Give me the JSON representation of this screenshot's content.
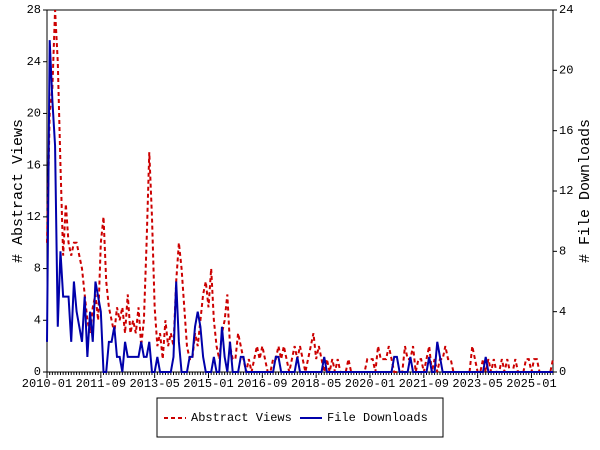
{
  "chart_data": {
    "type": "line",
    "y_label": "# Abstract Views",
    "y2_label": "# File Downloads",
    "categories": [
      "2010-01",
      null,
      null,
      null,
      null,
      null,
      null,
      null,
      null,
      null,
      null,
      null,
      null,
      null,
      null,
      null,
      null,
      null,
      null,
      null,
      "2011-09",
      null,
      null,
      null,
      null,
      null,
      null,
      null,
      null,
      null,
      null,
      null,
      null,
      null,
      null,
      null,
      null,
      null,
      null,
      null,
      "2013-05",
      null,
      null,
      null,
      null,
      null,
      null,
      null,
      null,
      null,
      null,
      null,
      null,
      null,
      null,
      null,
      null,
      null,
      null,
      null,
      "2015-01",
      null,
      null,
      null,
      null,
      null,
      null,
      null,
      null,
      null,
      null,
      null,
      null,
      null,
      null,
      null,
      null,
      null,
      null,
      null,
      "2016-09",
      null,
      null,
      null,
      null,
      null,
      null,
      null,
      null,
      null,
      null,
      null,
      null,
      null,
      null,
      null,
      null,
      null,
      null,
      null,
      "2018-05",
      null,
      null,
      null,
      null,
      null,
      null,
      null,
      null,
      null,
      null,
      null,
      null,
      null,
      null,
      null,
      null,
      null,
      null,
      null,
      "2020-01",
      null,
      null,
      null,
      null,
      null,
      null,
      null,
      null,
      null,
      null,
      null,
      null,
      null,
      null,
      null,
      null,
      null,
      null,
      null,
      "2021-09",
      null,
      null,
      null,
      null,
      null,
      null,
      null,
      null,
      null,
      null,
      null,
      null,
      null,
      null,
      null,
      null,
      null,
      null,
      null,
      "2023-05",
      null,
      null,
      null,
      null,
      null,
      null,
      null,
      null,
      null,
      null,
      null,
      null,
      null,
      null,
      null,
      null,
      null,
      null,
      null,
      "2025-01",
      null,
      null,
      null,
      null,
      null,
      null,
      null,
      null
    ],
    "series": [
      {
        "name": "Abstract Views",
        "color": "#cc0000",
        "dash": true,
        "values": [
          10,
          20,
          22,
          28,
          24,
          16,
          9,
          13,
          10,
          9,
          10,
          10,
          9,
          8,
          6,
          4,
          3,
          5,
          6,
          4,
          10,
          12,
          7,
          5,
          4,
          3,
          5,
          4,
          5,
          3,
          6,
          3,
          4,
          3,
          5,
          2,
          4,
          10,
          17,
          12,
          5,
          2,
          3,
          1,
          4,
          2,
          3,
          2,
          7,
          10,
          8,
          5,
          2,
          1,
          1,
          3,
          2,
          4,
          6,
          7,
          5,
          8,
          4,
          2,
          1,
          3,
          4,
          6,
          2,
          1,
          1,
          3,
          2,
          1,
          0,
          1,
          0,
          1,
          2,
          1,
          2,
          1,
          0,
          0,
          1,
          1,
          2,
          1,
          2,
          1,
          0,
          1,
          2,
          1,
          2,
          1,
          0,
          1,
          2,
          3,
          1,
          2,
          1,
          0,
          1,
          0,
          1,
          0,
          1,
          0,
          0,
          0,
          1,
          0,
          0,
          0,
          0,
          0,
          0,
          1,
          1,
          1,
          0,
          2,
          1,
          1,
          1,
          2,
          1,
          0,
          0,
          0,
          0,
          2,
          1,
          1,
          2,
          0,
          1,
          1,
          0,
          1,
          2,
          0,
          1,
          0,
          1,
          1,
          2,
          1,
          1,
          0,
          0,
          0,
          0,
          0,
          0,
          0,
          2,
          1,
          0,
          0,
          1,
          0,
          1,
          0,
          1,
          0,
          0,
          1,
          0,
          1,
          0,
          0,
          1,
          0,
          0,
          0,
          1,
          1,
          0,
          1,
          1,
          0,
          0,
          0,
          0,
          0,
          1
        ]
      },
      {
        "name": "File Downloads",
        "color": "#0000aa",
        "dash": false,
        "axis": "y2",
        "values": [
          2,
          22,
          18,
          15,
          3,
          8,
          5,
          5,
          5,
          2,
          6,
          4,
          3,
          2,
          5,
          1,
          4,
          2,
          6,
          5,
          4,
          0,
          0,
          2,
          2,
          3,
          1,
          1,
          0,
          2,
          1,
          1,
          1,
          1,
          1,
          2,
          1,
          1,
          2,
          0,
          0,
          1,
          0,
          0,
          0,
          0,
          0,
          1,
          6,
          2,
          0,
          0,
          0,
          1,
          1,
          3,
          4,
          3,
          1,
          0,
          0,
          0,
          1,
          0,
          0,
          3,
          1,
          0,
          2,
          0,
          0,
          0,
          1,
          1,
          0,
          0,
          0,
          0,
          0,
          0,
          0,
          0,
          0,
          0,
          0,
          1,
          1,
          0,
          0,
          0,
          0,
          0,
          0,
          1,
          0,
          0,
          0,
          0,
          0,
          0,
          0,
          0,
          0,
          1,
          0,
          0,
          0,
          0,
          0,
          0,
          0,
          0,
          0,
          0,
          0,
          0,
          0,
          0,
          0,
          0,
          0,
          0,
          0,
          0,
          0,
          0,
          0,
          0,
          0,
          1,
          1,
          0,
          0,
          0,
          0,
          1,
          0,
          0,
          0,
          0,
          0,
          0,
          1,
          0,
          0,
          2,
          1,
          0,
          0,
          0,
          0,
          0,
          0,
          0,
          0,
          0,
          0,
          0,
          0,
          0,
          0,
          0,
          0,
          1,
          0,
          0,
          0,
          0,
          0,
          0,
          0,
          0,
          0,
          0,
          0,
          0,
          0,
          0,
          0,
          0,
          0,
          0,
          0,
          0,
          0,
          0,
          0,
          0,
          0
        ]
      }
    ],
    "ylim": [
      0,
      28
    ],
    "yticks": [
      0,
      4,
      8,
      12,
      16,
      20,
      24,
      28
    ],
    "y2lim": [
      0,
      24
    ],
    "y2ticks": [
      0,
      4,
      8,
      12,
      16,
      20,
      24
    ],
    "legend": "bottom"
  }
}
